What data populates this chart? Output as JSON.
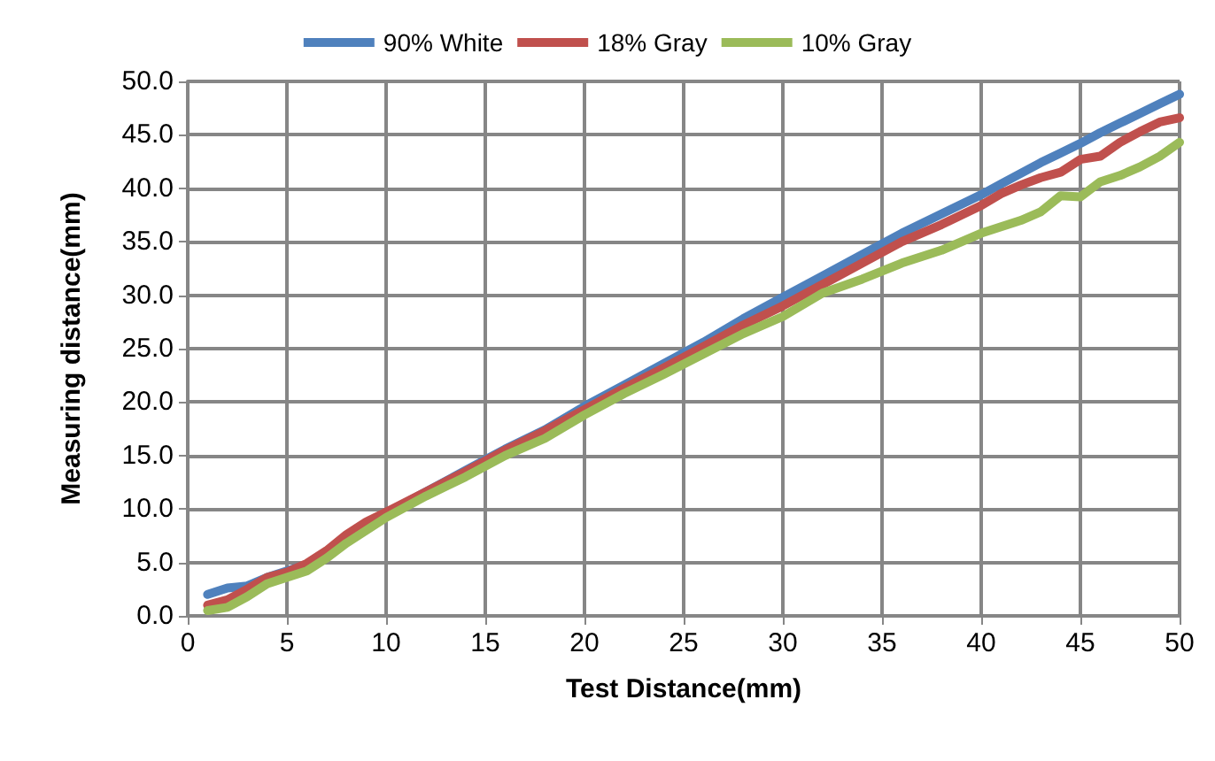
{
  "chart_data": {
    "type": "line",
    "xlabel": "Test Distance(mm)",
    "ylabel": "Measuring distance(mm)",
    "x": [
      1,
      2,
      3,
      4,
      5,
      6,
      7,
      8,
      9,
      10,
      12,
      14,
      16,
      18,
      20,
      22,
      24,
      26,
      28,
      30,
      32,
      34,
      36,
      38,
      40,
      41,
      42,
      43,
      44,
      45,
      46,
      47,
      48,
      49,
      50
    ],
    "series": [
      {
        "name": "90% White",
        "color": "#4f81bd",
        "values": [
          2.0,
          2.6,
          2.8,
          3.6,
          4.2,
          4.8,
          6.0,
          7.3,
          8.4,
          9.6,
          11.6,
          13.6,
          15.6,
          17.4,
          19.6,
          21.6,
          23.6,
          25.6,
          27.8,
          29.8,
          31.8,
          33.8,
          35.8,
          37.6,
          39.4,
          40.4,
          41.4,
          42.4,
          43.3,
          44.2,
          45.2,
          46.1,
          47.0,
          47.9,
          48.8
        ]
      },
      {
        "name": "18% Gray",
        "color": "#c0504d",
        "values": [
          1.0,
          1.5,
          2.5,
          3.6,
          4.1,
          4.9,
          6.1,
          7.6,
          8.8,
          9.7,
          11.6,
          13.5,
          15.5,
          17.3,
          19.3,
          21.3,
          23.2,
          25.2,
          27.2,
          29.0,
          31.0,
          33.0,
          35.0,
          36.6,
          38.4,
          39.5,
          40.3,
          41.0,
          41.5,
          42.7,
          43.0,
          44.3,
          45.3,
          46.2,
          46.6
        ]
      },
      {
        "name": "10% Gray",
        "color": "#9bbb59",
        "values": [
          0.5,
          0.8,
          1.8,
          3.0,
          3.6,
          4.2,
          5.4,
          6.8,
          8.0,
          9.2,
          11.2,
          13.0,
          15.0,
          16.6,
          18.8,
          20.8,
          22.6,
          24.5,
          26.4,
          28.0,
          30.2,
          31.5,
          33.0,
          34.2,
          35.8,
          36.4,
          37.0,
          37.8,
          39.3,
          39.2,
          40.6,
          41.2,
          42.0,
          43.0,
          44.3
        ]
      }
    ],
    "xlim": [
      0,
      50
    ],
    "xticks": [
      0,
      5,
      10,
      15,
      20,
      25,
      30,
      35,
      40,
      45,
      50
    ],
    "ylim": [
      0,
      50
    ],
    "yticks": [
      {
        "value": 0,
        "label": "0.0"
      },
      {
        "value": 5,
        "label": "5.0"
      },
      {
        "value": 10,
        "label": "10.0"
      },
      {
        "value": 15,
        "label": "15.0"
      },
      {
        "value": 20,
        "label": "20.0"
      },
      {
        "value": 25,
        "label": "25.0"
      },
      {
        "value": 30,
        "label": "30.0"
      },
      {
        "value": 35,
        "label": "35.0"
      },
      {
        "value": 40,
        "label": "40.0"
      },
      {
        "value": 45,
        "label": "45.0"
      },
      {
        "value": 50,
        "label": "50.0"
      }
    ],
    "grid": true,
    "legend": "top",
    "marker": "none",
    "line_style": "solid"
  }
}
